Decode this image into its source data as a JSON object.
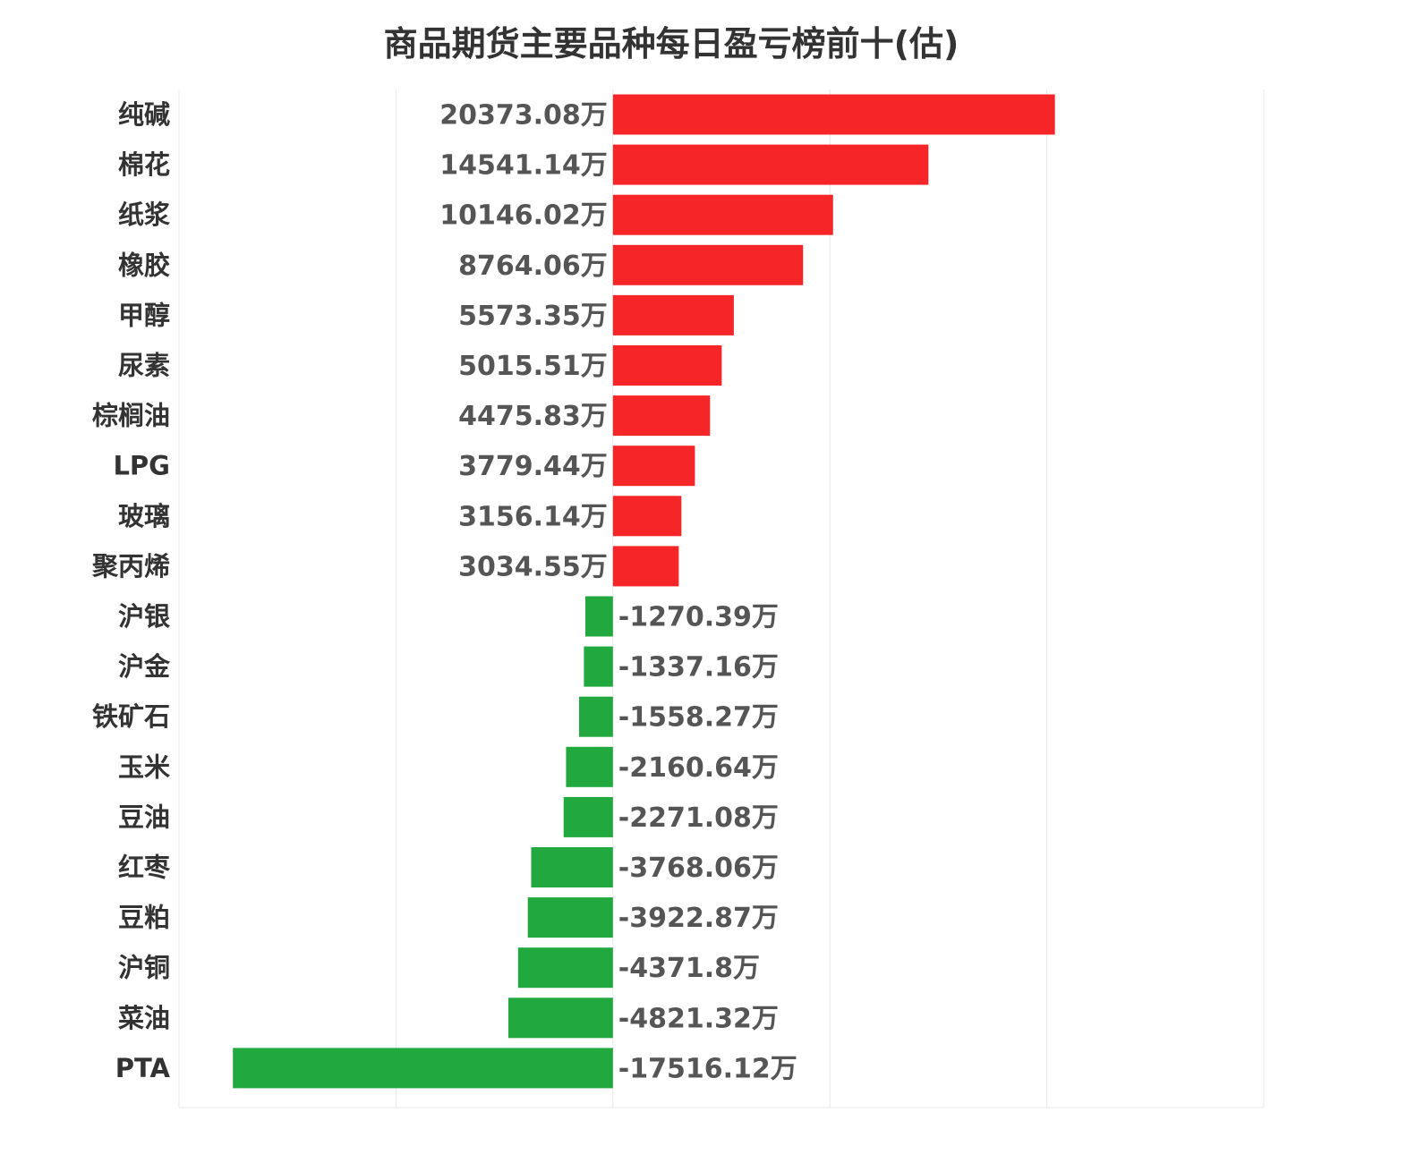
{
  "title": "商品期货主要品种每日盈亏榜前十(估)",
  "colors": {
    "positive": "#f52528",
    "negative": "#21a83e",
    "grid": "#e8e8e8",
    "category_text": "#333333",
    "value_text": "#555555"
  },
  "chart_data": {
    "type": "bar",
    "orientation": "horizontal",
    "title": "商品期货主要品种每日盈亏榜前十(估)",
    "unit": "万",
    "categories": [
      "纯碱",
      "棉花",
      "纸浆",
      "橡胶",
      "甲醇",
      "尿素",
      "棕榈油",
      "LPG",
      "玻璃",
      "聚丙烯",
      "沪银",
      "沪金",
      "铁矿石",
      "玉米",
      "豆油",
      "红枣",
      "豆粕",
      "沪铜",
      "菜油",
      "PTA"
    ],
    "values": [
      20373.08,
      14541.14,
      10146.02,
      8764.06,
      5573.35,
      5015.51,
      4475.83,
      3779.44,
      3156.14,
      3034.55,
      -1270.39,
      -1337.16,
      -1558.27,
      -2160.64,
      -2271.08,
      -3768.06,
      -3922.87,
      -4371.8,
      -4821.32,
      -17516.12
    ],
    "value_labels": [
      "20373.08万",
      "14541.14万",
      "10146.02万",
      "8764.06万",
      "5573.35万",
      "5015.51万",
      "4475.83万",
      "3779.44万",
      "3156.14万",
      "3034.55万",
      "-1270.39万",
      "-1337.16万",
      "-1558.27万",
      "-2160.64万",
      "-2271.08万",
      "-3768.06万",
      "-3922.87万",
      "-4371.8万",
      "-4821.32万",
      "-17516.12万"
    ],
    "xlim": [
      -20000,
      30000
    ],
    "grid": true,
    "legend": "none"
  }
}
